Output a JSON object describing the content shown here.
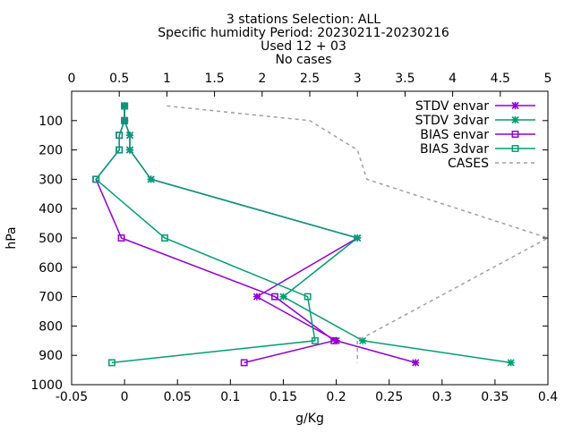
{
  "chart_data": {
    "type": "line",
    "title_lines": [
      "3 stations Selection: ALL",
      "Specific humidity  Period: 20230211-20230216",
      "Used 12 + 03",
      "No cases"
    ],
    "xlabel": "g/Kg",
    "ylabel": "hPa",
    "xlim": [
      -0.05,
      0.4
    ],
    "x2lim": [
      0,
      5
    ],
    "ylim": [
      1000,
      0
    ],
    "y_reversed": true,
    "x_ticks": [
      "-0.05",
      "0",
      "0.05",
      "0.1",
      "0.15",
      "0.2",
      "0.25",
      "0.3",
      "0.35",
      "0.4"
    ],
    "x2_ticks": [
      "0",
      "0.5",
      "1",
      "1.5",
      "2",
      "2.5",
      "3",
      "3.5",
      "4",
      "4.5",
      "5"
    ],
    "y_ticks": [
      "100",
      "200",
      "300",
      "400",
      "500",
      "600",
      "700",
      "800",
      "900",
      "1000"
    ],
    "legend_position": "top-right",
    "series": [
      {
        "name": "STDV envar",
        "axis": "x",
        "color": "#9400d3",
        "marker": "star",
        "dash": "",
        "points": [
          [
            0,
            50
          ],
          [
            0,
            100
          ],
          [
            0.005,
            150
          ],
          [
            0.005,
            200
          ],
          [
            0.025,
            300
          ],
          [
            0.22,
            500
          ],
          [
            0.125,
            700
          ],
          [
            0.2,
            850
          ],
          [
            0.275,
            925
          ]
        ]
      },
      {
        "name": "STDV 3dvar",
        "axis": "x",
        "color": "#009e73",
        "marker": "star",
        "dash": "",
        "points": [
          [
            0,
            50
          ],
          [
            0,
            100
          ],
          [
            0.005,
            150
          ],
          [
            0.005,
            200
          ],
          [
            0.025,
            300
          ],
          [
            0.22,
            500
          ],
          [
            0.15,
            700
          ],
          [
            0.225,
            850
          ],
          [
            0.365,
            925
          ]
        ]
      },
      {
        "name": "BIAS envar",
        "axis": "x",
        "color": "#9400d3",
        "marker": "square",
        "dash": "",
        "points": [
          [
            0,
            50
          ],
          [
            0,
            100
          ],
          [
            -0.005,
            150
          ],
          [
            -0.005,
            200
          ],
          [
            -0.027,
            300
          ],
          [
            -0.003,
            500
          ],
          [
            0.142,
            700
          ],
          [
            0.198,
            850
          ],
          [
            0.113,
            925
          ]
        ]
      },
      {
        "name": "BIAS 3dvar",
        "axis": "x",
        "color": "#009e73",
        "marker": "square",
        "dash": "",
        "points": [
          [
            0,
            50
          ],
          [
            0,
            100
          ],
          [
            -0.005,
            150
          ],
          [
            -0.005,
            200
          ],
          [
            -0.027,
            300
          ],
          [
            0.038,
            500
          ],
          [
            0.173,
            700
          ],
          [
            0.18,
            850
          ],
          [
            -0.012,
            925
          ]
        ]
      },
      {
        "name": "CASES",
        "axis": "x2",
        "color": "#a0a0a0",
        "marker": "none",
        "dash": "4,4",
        "points": [
          [
            1.0,
            50
          ],
          [
            2.5,
            100
          ],
          [
            3.0,
            200
          ],
          [
            3.1,
            300
          ],
          [
            5.0,
            500
          ],
          [
            3.0,
            850
          ],
          [
            3.0,
            925
          ]
        ]
      }
    ]
  }
}
